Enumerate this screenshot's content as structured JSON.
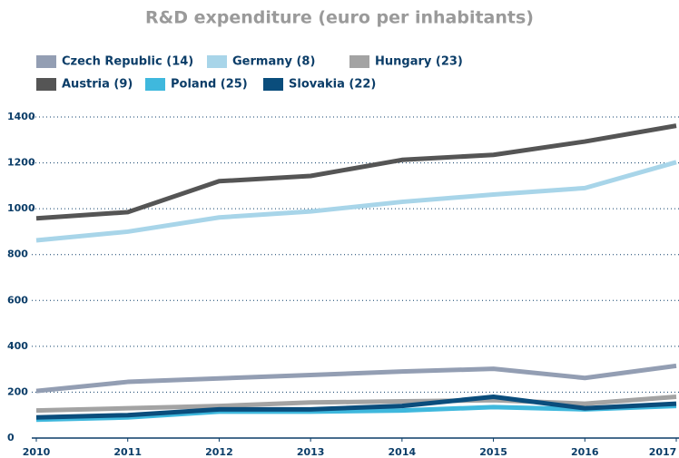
{
  "chart_data": {
    "type": "line",
    "title": "R&D expenditure (euro per inhabitants)",
    "x": [
      2010,
      2011,
      2012,
      2013,
      2014,
      2015,
      2016,
      2017
    ],
    "xlim": [
      2010,
      2017
    ],
    "xticks": [
      2010,
      2011,
      2012,
      2013,
      2014,
      2015,
      2016,
      2017
    ],
    "ylim": [
      0,
      1400
    ],
    "yticks": [
      0,
      200,
      400,
      600,
      800,
      1000,
      1200,
      1400
    ],
    "grid": true,
    "series": [
      {
        "name": "Czech Republic (14)",
        "color": "#939eb3",
        "values": [
          205,
          245,
          260,
          275,
          290,
          302,
          262,
          315
        ]
      },
      {
        "name": "Germany (8)",
        "color": "#a8d5e9",
        "values": [
          862,
          900,
          962,
          988,
          1030,
          1062,
          1090,
          1203
        ]
      },
      {
        "name": "Hungary (23)",
        "color": "#a3a3a3",
        "values": [
          120,
          130,
          140,
          155,
          160,
          165,
          150,
          180
        ]
      },
      {
        "name": "Austria (9)",
        "color": "#555555",
        "values": [
          958,
          985,
          1120,
          1143,
          1213,
          1235,
          1293,
          1362
        ]
      },
      {
        "name": "Poland (25)",
        "color": "#3fb8dd",
        "values": [
          80,
          90,
          115,
          115,
          120,
          135,
          125,
          140
        ]
      },
      {
        "name": "Slovakia (22)",
        "color": "#0a4d7c",
        "values": [
          90,
          100,
          125,
          125,
          140,
          180,
          130,
          150
        ]
      }
    ]
  }
}
